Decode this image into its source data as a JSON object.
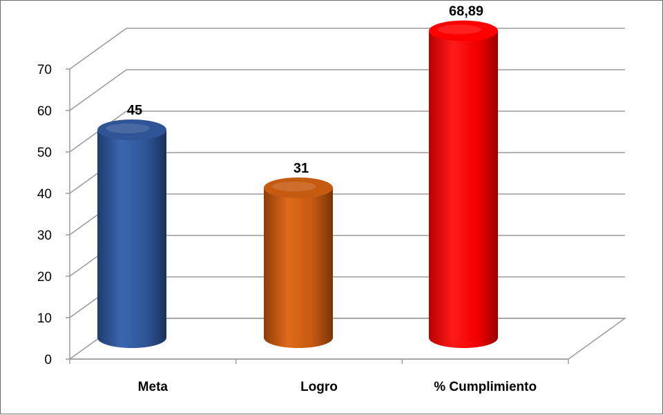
{
  "chart_data": {
    "type": "bar",
    "style": "3d-cylinder",
    "categories": [
      "Meta",
      "Logro",
      "% Cumplimiento"
    ],
    "values": [
      45,
      31,
      68.89
    ],
    "data_labels": [
      "45",
      "31",
      "68,89"
    ],
    "colors": [
      "#2f5597",
      "#c55a11",
      "#ff0000"
    ],
    "ylim": [
      0,
      70
    ],
    "yticks": [
      "0",
      "10",
      "20",
      "30",
      "40",
      "50",
      "60",
      "70"
    ],
    "grid": true,
    "legend": "none",
    "title": "",
    "xlabel": "",
    "ylabel": ""
  }
}
